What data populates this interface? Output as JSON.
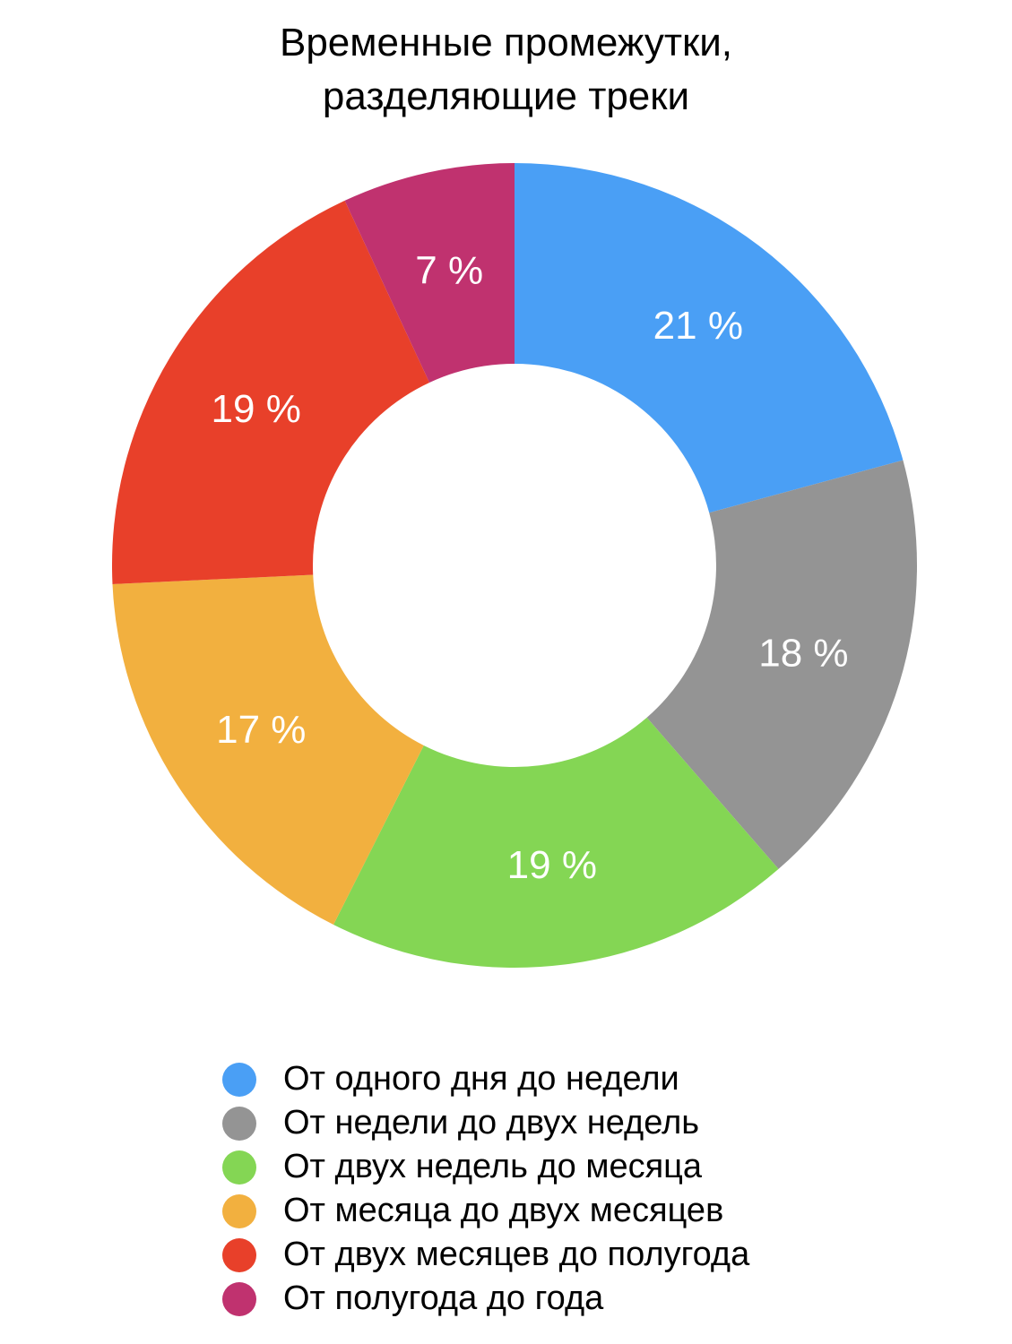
{
  "chart_data": {
    "type": "pie",
    "variant": "donut",
    "title_lines": [
      "Временные промежутки,",
      "разделяющие треки"
    ],
    "categories": [
      "От одного дня до недели",
      "От недели до двух недель",
      "От двух недель до месяца",
      "От месяца до двух месяцев",
      "От двух месяцев до полугода",
      "От полугода до года"
    ],
    "values": [
      21,
      18,
      19,
      17,
      19,
      7
    ],
    "value_labels": [
      "21 %",
      "18 %",
      "19 %",
      "17 %",
      "19 %",
      "7 %"
    ],
    "colors": [
      "#4a9ff5",
      "#949494",
      "#84d654",
      "#f2b03f",
      "#e8402a",
      "#c0326f"
    ],
    "start_angle": "12 o'clock",
    "direction": "clockwise",
    "legend_position": "bottom"
  }
}
